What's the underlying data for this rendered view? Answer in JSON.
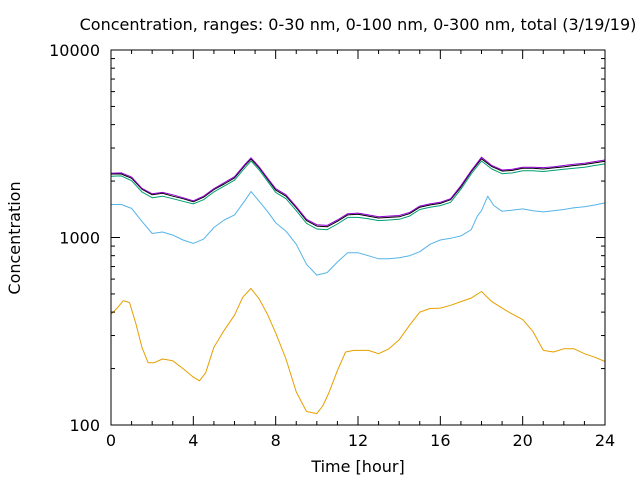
{
  "chart_data": {
    "type": "line",
    "title": "Concentration, ranges: 0-30 nm, 0-100 nm, 0-300 nm, total (3/19/19)",
    "xlabel": "Time [hour]",
    "ylabel": "Concentration",
    "xlim": [
      0,
      24
    ],
    "ylim": [
      100,
      10000
    ],
    "yscale": "log",
    "grid": false,
    "xticks": [
      0,
      4,
      8,
      12,
      16,
      20,
      24
    ],
    "xtick_labels": [
      "0",
      "4",
      "8",
      "12",
      "16",
      "20",
      "24"
    ],
    "yticks": [
      100,
      1000,
      10000
    ],
    "ytick_labels": [
      "100",
      "1000",
      "10000"
    ],
    "minor_xticks": [
      1,
      2,
      3,
      5,
      6,
      7,
      9,
      10,
      11,
      13,
      14,
      15,
      17,
      18,
      19,
      21,
      22,
      23
    ],
    "minor_yticks": [
      200,
      300,
      400,
      500,
      600,
      700,
      800,
      900,
      2000,
      3000,
      4000,
      5000,
      6000,
      7000,
      8000,
      9000
    ],
    "series": [
      {
        "color": "#e69f00",
        "x": [
          0,
          0.3,
          0.6,
          0.9,
          1.2,
          1.5,
          1.8,
          2.1,
          2.5,
          3.0,
          3.5,
          4.0,
          4.3,
          4.6,
          5.0,
          5.5,
          6.0,
          6.4,
          6.8,
          7.2,
          7.6,
          8.0,
          8.5,
          9.0,
          9.5,
          10.0,
          10.3,
          10.6,
          11.0,
          11.4,
          11.8,
          12.5,
          13.0,
          13.5,
          14.0,
          14.5,
          15.0,
          15.5,
          16.0,
          16.5,
          17.0,
          17.5,
          18.0,
          18.5,
          19.0,
          19.5,
          20.0,
          20.5,
          21.0,
          21.5,
          22.0,
          22.5,
          23.0,
          23.5,
          24.0
        ],
        "y": [
          390,
          420,
          460,
          450,
          350,
          260,
          215,
          215,
          225,
          220,
          200,
          180,
          172,
          190,
          260,
          320,
          385,
          480,
          535,
          470,
          390,
          310,
          225,
          150,
          118,
          115,
          127,
          150,
          195,
          245,
          250,
          250,
          240,
          255,
          285,
          340,
          400,
          418,
          420,
          435,
          455,
          475,
          515,
          455,
          420,
          390,
          365,
          315,
          250,
          245,
          255,
          255,
          240,
          230,
          218
        ]
      },
      {
        "color": "#56b4e9",
        "x": [
          0,
          0.5,
          1.0,
          1.5,
          2.0,
          2.5,
          3.0,
          3.5,
          4.0,
          4.5,
          5.0,
          5.5,
          6.0,
          6.5,
          6.8,
          7.2,
          7.6,
          8.0,
          8.5,
          9.0,
          9.5,
          10.0,
          10.5,
          11.0,
          11.5,
          12.0,
          12.5,
          13.0,
          13.5,
          14.0,
          14.5,
          15.0,
          15.5,
          16.0,
          16.5,
          17.0,
          17.5,
          17.8,
          18.0,
          18.3,
          18.6,
          19.0,
          19.5,
          20.0,
          20.5,
          21.0,
          21.5,
          22.0,
          22.5,
          23.0,
          23.5,
          24.0
        ],
        "y": [
          1500,
          1500,
          1430,
          1220,
          1050,
          1070,
          1030,
          970,
          930,
          980,
          1130,
          1240,
          1320,
          1570,
          1760,
          1560,
          1380,
          1200,
          1080,
          920,
          720,
          630,
          650,
          740,
          830,
          830,
          800,
          770,
          770,
          780,
          800,
          840,
          920,
          970,
          990,
          1020,
          1100,
          1300,
          1390,
          1660,
          1480,
          1380,
          1400,
          1420,
          1390,
          1370,
          1390,
          1410,
          1440,
          1460,
          1490,
          1530
        ]
      },
      {
        "color": "#009e73",
        "x": [
          0,
          0.5,
          1.0,
          1.5,
          2.0,
          2.5,
          3.0,
          3.5,
          4.0,
          4.5,
          5.0,
          5.5,
          6.0,
          6.5,
          6.8,
          7.2,
          7.6,
          8.0,
          8.5,
          9.0,
          9.5,
          10.0,
          10.5,
          11.0,
          11.5,
          12.0,
          12.5,
          13.0,
          13.5,
          14.0,
          14.5,
          15.0,
          15.5,
          16.0,
          16.5,
          17.0,
          17.5,
          18.0,
          18.5,
          19.0,
          19.5,
          20.0,
          20.5,
          21.0,
          21.5,
          22.0,
          22.5,
          23.0,
          23.5,
          24.0
        ],
        "y": [
          2120,
          2130,
          2010,
          1750,
          1630,
          1660,
          1610,
          1560,
          1510,
          1590,
          1750,
          1880,
          2020,
          2350,
          2560,
          2290,
          2000,
          1740,
          1610,
          1390,
          1190,
          1110,
          1100,
          1180,
          1280,
          1280,
          1260,
          1230,
          1240,
          1250,
          1300,
          1410,
          1450,
          1480,
          1540,
          1810,
          2180,
          2560,
          2320,
          2190,
          2210,
          2270,
          2270,
          2250,
          2280,
          2310,
          2340,
          2370,
          2420,
          2470
        ]
      },
      {
        "color": "#000000",
        "x": [
          0,
          0.5,
          1.0,
          1.5,
          2.0,
          2.5,
          3.0,
          3.5,
          4.0,
          4.5,
          5.0,
          5.5,
          6.0,
          6.5,
          6.8,
          7.2,
          7.6,
          8.0,
          8.5,
          9.0,
          9.5,
          10.0,
          10.5,
          11.0,
          11.5,
          12.0,
          12.5,
          13.0,
          13.5,
          14.0,
          14.5,
          15.0,
          15.5,
          16.0,
          16.5,
          17.0,
          17.5,
          18.0,
          18.5,
          19.0,
          19.5,
          20.0,
          20.5,
          21.0,
          21.5,
          22.0,
          22.5,
          23.0,
          23.5,
          24.0
        ],
        "y": [
          2180,
          2180,
          2070,
          1810,
          1690,
          1720,
          1660,
          1610,
          1550,
          1640,
          1800,
          1930,
          2080,
          2420,
          2620,
          2350,
          2050,
          1790,
          1660,
          1440,
          1230,
          1150,
          1140,
          1220,
          1320,
          1330,
          1300,
          1270,
          1280,
          1290,
          1340,
          1450,
          1490,
          1520,
          1590,
          1860,
          2240,
          2630,
          2390,
          2260,
          2280,
          2340,
          2340,
          2320,
          2350,
          2380,
          2420,
          2450,
          2500,
          2550
        ]
      },
      {
        "color": "#9400d3",
        "x": [
          0,
          0.5,
          1.0,
          1.5,
          2.0,
          2.5,
          3.0,
          3.5,
          4.0,
          4.5,
          5.0,
          5.5,
          6.0,
          6.5,
          6.8,
          7.2,
          7.6,
          8.0,
          8.5,
          9.0,
          9.5,
          10.0,
          10.5,
          11.0,
          11.5,
          12.0,
          12.5,
          13.0,
          13.5,
          14.0,
          14.5,
          15.0,
          15.5,
          16.0,
          16.5,
          17.0,
          17.5,
          18.0,
          18.5,
          19.0,
          19.5,
          20.0,
          20.5,
          21.0,
          21.5,
          22.0,
          22.5,
          23.0,
          23.5,
          24.0
        ],
        "y": [
          2200,
          2210,
          2100,
          1830,
          1710,
          1740,
          1690,
          1630,
          1570,
          1660,
          1820,
          1960,
          2110,
          2450,
          2660,
          2380,
          2080,
          1820,
          1690,
          1460,
          1250,
          1170,
          1160,
          1240,
          1340,
          1350,
          1320,
          1290,
          1300,
          1310,
          1360,
          1470,
          1510,
          1540,
          1610,
          1890,
          2270,
          2680,
          2420,
          2290,
          2310,
          2370,
          2370,
          2360,
          2380,
          2420,
          2460,
          2490,
          2540,
          2590
        ]
      }
    ]
  }
}
